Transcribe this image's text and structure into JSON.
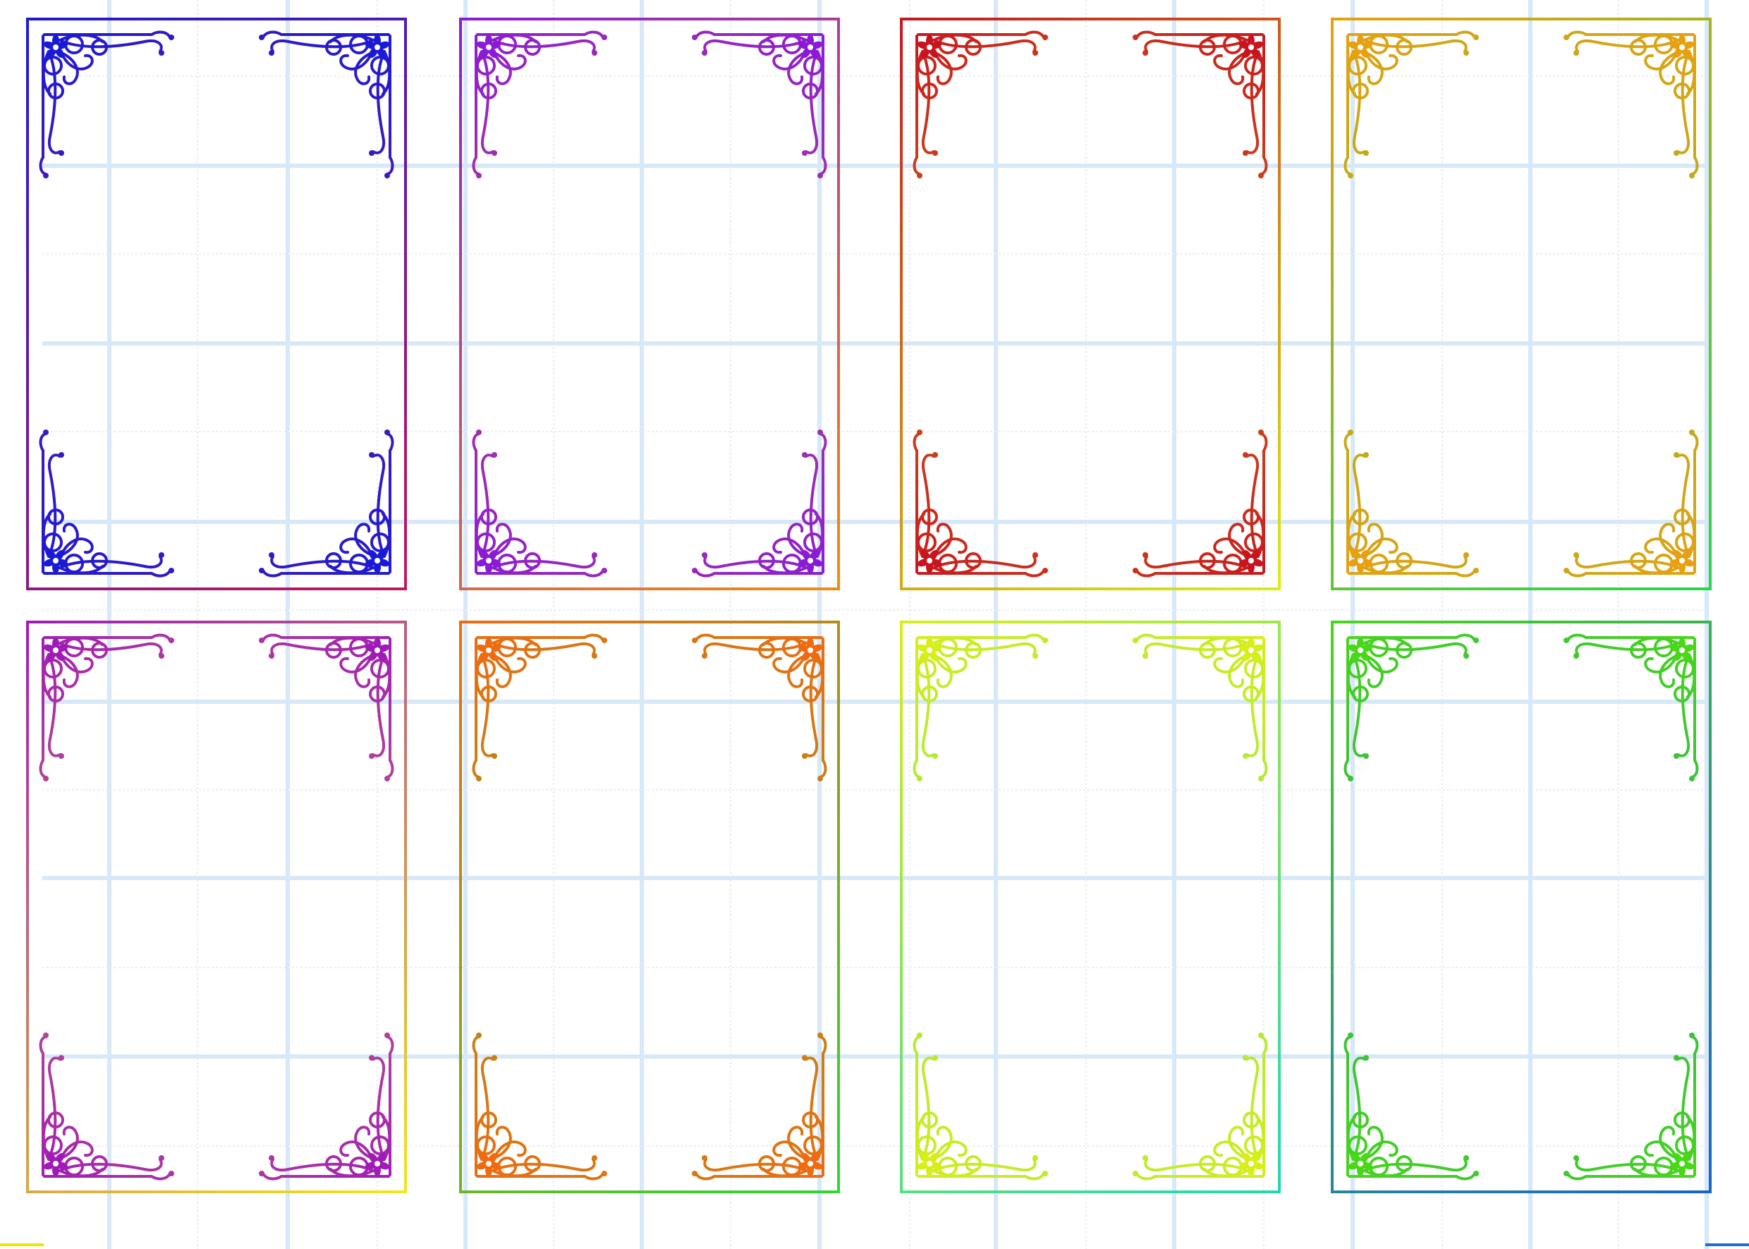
{
  "page": {
    "background": "#ffffff",
    "grid_major_color": "#d7e8f8",
    "grid_minor_color": "#e8eef5"
  },
  "cards": [
    {
      "start": "#1a1ad6",
      "end": "#c2185b",
      "ornament": "flourish-corner-icon"
    },
    {
      "start": "#8a1ad6",
      "end": "#f28c10",
      "ornament": "flourish-corner-icon"
    },
    {
      "start": "#c8141e",
      "end": "#d9ef10",
      "ornament": "flourish-corner-icon"
    },
    {
      "start": "#e8a010",
      "end": "#24d84a",
      "ornament": "flourish-corner-icon"
    },
    {
      "start": "#a01ab8",
      "end": "#f0e818",
      "ornament": "flourish-corner-icon"
    },
    {
      "start": "#f06a10",
      "end": "#2cd834",
      "ornament": "flourish-corner-icon"
    },
    {
      "start": "#d8ee18",
      "end": "#20d8b0",
      "ornament": "flourish-corner-icon"
    },
    {
      "start": "#48d818",
      "end": "#1862d0",
      "ornament": "flourish-corner-icon"
    }
  ],
  "edge_marks": {
    "left": "#f2e500",
    "right": "#1e6fd0"
  }
}
